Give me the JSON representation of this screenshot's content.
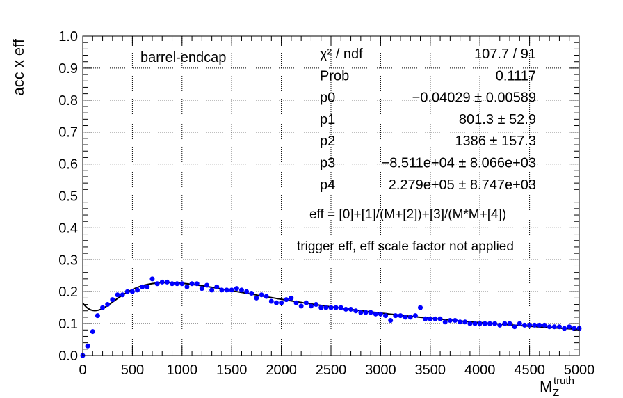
{
  "chart_data": {
    "type": "scatter",
    "ylabel": "acc x eff",
    "xlabel": "M",
    "xlabel_sub": "Z",
    "xlabel_sup": "truth",
    "xlim": [
      0,
      5000
    ],
    "ylim": [
      0,
      1.0
    ],
    "x_ticks": [
      0,
      500,
      1000,
      1500,
      2000,
      2500,
      3000,
      3500,
      4000,
      4500,
      5000
    ],
    "y_ticks": [
      "0.0",
      "0.1",
      "0.2",
      "0.3",
      "0.4",
      "0.5",
      "0.6",
      "0.7",
      "0.8",
      "0.9",
      "1.0"
    ],
    "grid": true,
    "marker_color": "#0000ff",
    "fit_color": "#000000",
    "annotations": {
      "region": "barrel-endcap",
      "formula": "eff = [0]+[1]/(M+[2])+[3]/(M*M+[4])",
      "note": "trigger eff, eff scale factor not applied"
    },
    "stats": [
      {
        "label": "χ² / ndf",
        "value": "107.7 / 91"
      },
      {
        "label": "Prob",
        "value": "0.1117"
      },
      {
        "label": "p0",
        "value": "−0.04029 ± 0.00589"
      },
      {
        "label": "p1",
        "value": "801.3 ± 52.9"
      },
      {
        "label": "p2",
        "value": "1386 ± 157.3"
      },
      {
        "label": "p3",
        "value": "−8.511e+04 ± 8.066e+03"
      },
      {
        "label": "p4",
        "value": "2.279e+05 ± 8.747e+03"
      }
    ],
    "fit_params": {
      "p0": -0.04029,
      "p1": 801.3,
      "p2": 1386,
      "p3": -85110,
      "p4": 227900
    },
    "series": [
      {
        "x": [
          0,
          50,
          100,
          150,
          200,
          250,
          300,
          350,
          400,
          450,
          500,
          550,
          600,
          650,
          700,
          750,
          800,
          850,
          900,
          950,
          1000,
          1050,
          1100,
          1150,
          1200,
          1250,
          1300,
          1350,
          1400,
          1450,
          1500,
          1550,
          1600,
          1650,
          1700,
          1750,
          1800,
          1850,
          1900,
          1950,
          2000,
          2050,
          2100,
          2150,
          2200,
          2250,
          2300,
          2350,
          2400,
          2450,
          2500,
          2550,
          2600,
          2650,
          2700,
          2750,
          2800,
          2850,
          2900,
          2950,
          3000,
          3050,
          3100,
          3150,
          3200,
          3250,
          3300,
          3350,
          3400,
          3450,
          3500,
          3550,
          3600,
          3650,
          3700,
          3750,
          3800,
          3850,
          3900,
          3950,
          4000,
          4050,
          4100,
          4150,
          4200,
          4250,
          4300,
          4350,
          4400,
          4450,
          4500,
          4550,
          4600,
          4650,
          4700,
          4750,
          4800,
          4850,
          4900,
          4950,
          5000
        ],
        "y": [
          0.0,
          0.03,
          0.075,
          0.125,
          0.15,
          0.16,
          0.175,
          0.19,
          0.19,
          0.2,
          0.2,
          0.205,
          0.215,
          0.215,
          0.24,
          0.225,
          0.23,
          0.23,
          0.225,
          0.225,
          0.225,
          0.215,
          0.225,
          0.225,
          0.21,
          0.22,
          0.205,
          0.215,
          0.205,
          0.205,
          0.205,
          0.21,
          0.205,
          0.2,
          0.195,
          0.18,
          0.19,
          0.185,
          0.17,
          0.165,
          0.165,
          0.175,
          0.18,
          0.165,
          0.155,
          0.165,
          0.155,
          0.16,
          0.15,
          0.15,
          0.15,
          0.15,
          0.15,
          0.145,
          0.145,
          0.14,
          0.135,
          0.135,
          0.135,
          0.13,
          0.13,
          0.125,
          0.11,
          0.125,
          0.125,
          0.12,
          0.12,
          0.125,
          0.15,
          0.115,
          0.115,
          0.115,
          0.115,
          0.105,
          0.11,
          0.11,
          0.105,
          0.105,
          0.1,
          0.1,
          0.1,
          0.1,
          0.1,
          0.1,
          0.095,
          0.1,
          0.1,
          0.09,
          0.1,
          0.095,
          0.095,
          0.095,
          0.095,
          0.095,
          0.09,
          0.09,
          0.09,
          0.085,
          0.09,
          0.085,
          0.085
        ]
      }
    ]
  }
}
